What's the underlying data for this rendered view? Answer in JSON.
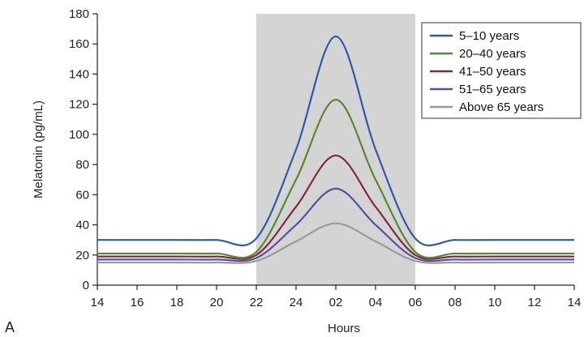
{
  "panel_label": "A",
  "chart_data": {
    "type": "line",
    "title": "",
    "xlabel": "Hours",
    "ylabel": "Melatonin (pg/mL)",
    "x": [
      "14",
      "16",
      "18",
      "20",
      "22",
      "24",
      "02",
      "04",
      "06",
      "08",
      "10",
      "12",
      "14"
    ],
    "ylim": [
      0,
      180
    ],
    "yticks": [
      0,
      20,
      40,
      60,
      80,
      100,
      120,
      140,
      160,
      180
    ],
    "shaded_region": {
      "from": "22",
      "to": "06",
      "color": "#d4d4d4"
    },
    "grid": false,
    "legend_position": "top-right",
    "series": [
      {
        "name": "5–10 years",
        "color": "#2c5aa8",
        "values": [
          30,
          30,
          30,
          30,
          31,
          90,
          165,
          90,
          31,
          30,
          30,
          30,
          30
        ]
      },
      {
        "name": "20–40 years",
        "color": "#548a2e",
        "values": [
          21,
          21,
          21,
          21,
          22,
          70,
          123,
          70,
          22,
          21,
          21,
          21,
          21
        ]
      },
      {
        "name": "41–50 years",
        "color": "#7f2a3a",
        "values": [
          19,
          19,
          19,
          19,
          20,
          52,
          86,
          52,
          20,
          19,
          19,
          19,
          19
        ]
      },
      {
        "name": "51–65 years",
        "color": "#5a4ea0",
        "values": [
          17,
          17,
          17,
          17,
          18,
          40,
          64,
          40,
          18,
          17,
          17,
          17,
          17
        ]
      },
      {
        "name": "Above 65 years",
        "color": "#9a9a9a",
        "values": [
          15,
          15,
          15,
          15,
          16,
          29,
          41,
          29,
          16,
          15,
          15,
          15,
          15
        ]
      }
    ]
  }
}
